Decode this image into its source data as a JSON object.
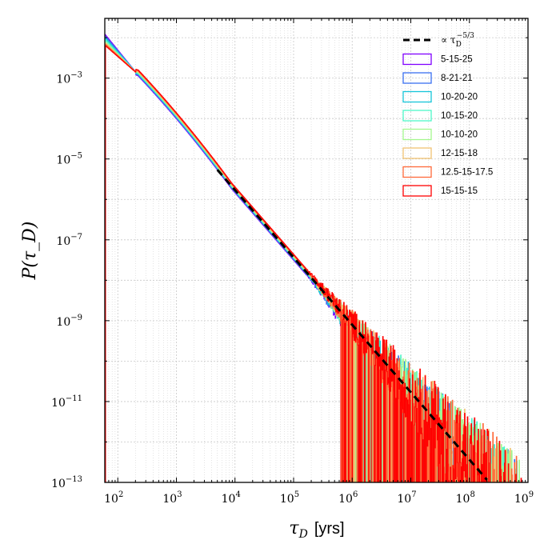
{
  "chart_data": {
    "type": "line",
    "title": "",
    "xscale": "log",
    "yscale": "log",
    "xlabel": "τ_D  [yrs]",
    "xlabel_symbol": "τ",
    "xlabel_subscript": "D",
    "xlabel_unit": "[yrs]",
    "ylabel": "P(τ_D)",
    "xlim": [
      60,
      1000000000
    ],
    "ylim": [
      1e-13,
      0.03
    ],
    "xticks": [
      {
        "value": 100,
        "base": "10",
        "exp": "2"
      },
      {
        "value": 1000,
        "base": "10",
        "exp": "3"
      },
      {
        "value": 10000,
        "base": "10",
        "exp": "4"
      },
      {
        "value": 100000,
        "base": "10",
        "exp": "5"
      },
      {
        "value": 1000000,
        "base": "10",
        "exp": "6"
      },
      {
        "value": 10000000,
        "base": "10",
        "exp": "7"
      },
      {
        "value": 100000000,
        "base": "10",
        "exp": "8"
      },
      {
        "value": 1000000000,
        "base": "10",
        "exp": "9"
      }
    ],
    "yticks": [
      {
        "value": 0.001,
        "base": "10",
        "exp": "−3"
      },
      {
        "value": 1e-05,
        "base": "10",
        "exp": "−5"
      },
      {
        "value": 1e-07,
        "base": "10",
        "exp": "−7"
      },
      {
        "value": 1e-09,
        "base": "10",
        "exp": "−9"
      },
      {
        "value": 1e-11,
        "base": "10",
        "exp": "−11"
      },
      {
        "value": 1e-13,
        "base": "10",
        "exp": "−13"
      }
    ],
    "grid": true,
    "legend_position": "top-right",
    "reference_line": {
      "label": "∝ τ_D^(−5/3)",
      "label_prefix": "∝ τ",
      "label_sub": "D",
      "label_sup": "−5/3",
      "slope": -1.6667,
      "x_range": [
        5000,
        200000000
      ],
      "anchor": {
        "x": 10000,
        "y": 1.7e-06
      },
      "color": "#000000",
      "style": "dashed"
    },
    "series": [
      {
        "name": "5-15-25",
        "color": "#7f00ff",
        "y_at_60": 0.012,
        "cutoff": 900000
      },
      {
        "name": "8-21-21",
        "color": "#3a6ff2",
        "y_at_60": 0.011,
        "cutoff": 700000000
      },
      {
        "name": "10-20-20",
        "color": "#16c5d9",
        "y_at_60": 0.01,
        "cutoff": 800000000
      },
      {
        "name": "10-15-20",
        "color": "#4df7c8",
        "y_at_60": 0.009,
        "cutoff": 700000000
      },
      {
        "name": "10-10-20",
        "color": "#a4f78e",
        "y_at_60": 0.008,
        "cutoff": 800000000
      },
      {
        "name": "12-15-18",
        "color": "#f0c374",
        "y_at_60": 0.0075,
        "cutoff": 700000000
      },
      {
        "name": "12.5-15-17.5",
        "color": "#ff6a3a",
        "y_at_60": 0.007,
        "cutoff": 700000000
      },
      {
        "name": "15-15-15",
        "color": "#ff0000",
        "y_at_60": 0.0065,
        "cutoff": 900000000
      }
    ]
  }
}
